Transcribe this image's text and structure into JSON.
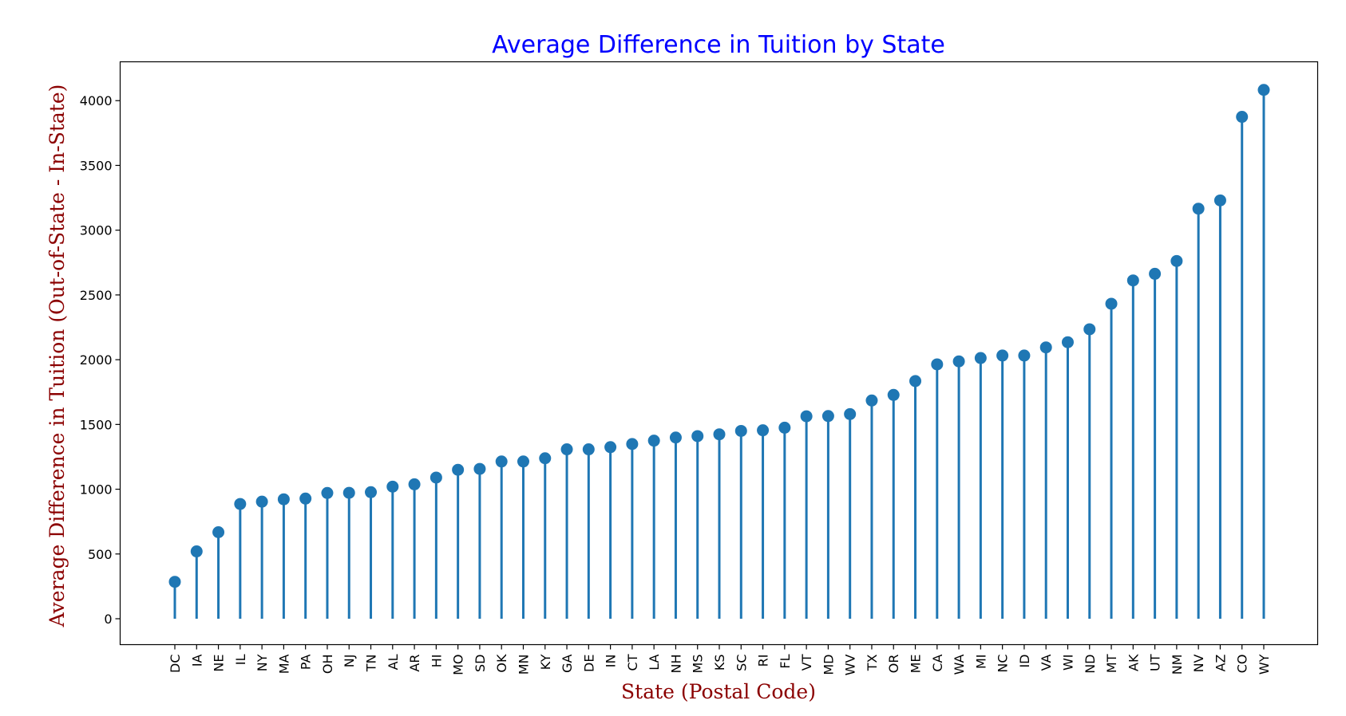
{
  "colors": {
    "title": "#0000ff",
    "axis_label": "#8b0000",
    "stem": "#1f77b4",
    "marker": "#1f77b4"
  },
  "chart_data": {
    "type": "lollipop",
    "title": "Average Difference in Tuition by State",
    "xlabel": "State (Postal Code)",
    "ylabel": "Average Difference in Tuition (Out-of-State - In-State)",
    "ylim": [
      -200,
      4300
    ],
    "yticks": [
      0,
      500,
      1000,
      1500,
      2000,
      2500,
      3000,
      3500,
      4000
    ],
    "grid": false,
    "categories": [
      "DC",
      "IA",
      "NE",
      "IL",
      "NY",
      "MA",
      "PA",
      "OH",
      "NJ",
      "TN",
      "AL",
      "AR",
      "HI",
      "MO",
      "SD",
      "OK",
      "MN",
      "KY",
      "GA",
      "DE",
      "IN",
      "CT",
      "LA",
      "NH",
      "MS",
      "KS",
      "SC",
      "RI",
      "FL",
      "VT",
      "MD",
      "WV",
      "TX",
      "OR",
      "ME",
      "CA",
      "WA",
      "MI",
      "NC",
      "ID",
      "VA",
      "WI",
      "ND",
      "MT",
      "AK",
      "UT",
      "NM",
      "NV",
      "AZ",
      "CO",
      "WY"
    ],
    "values": [
      285,
      520,
      668,
      886,
      904,
      922,
      928,
      971,
      972,
      977,
      1020,
      1038,
      1090,
      1150,
      1157,
      1214,
      1214,
      1239,
      1308,
      1308,
      1325,
      1349,
      1375,
      1399,
      1410,
      1424,
      1450,
      1455,
      1475,
      1563,
      1565,
      1580,
      1685,
      1728,
      1835,
      1964,
      1987,
      2013,
      2032,
      2032,
      2095,
      2135,
      2235,
      2432,
      2612,
      2663,
      2762,
      3166,
      3230,
      3875,
      4083
    ]
  }
}
